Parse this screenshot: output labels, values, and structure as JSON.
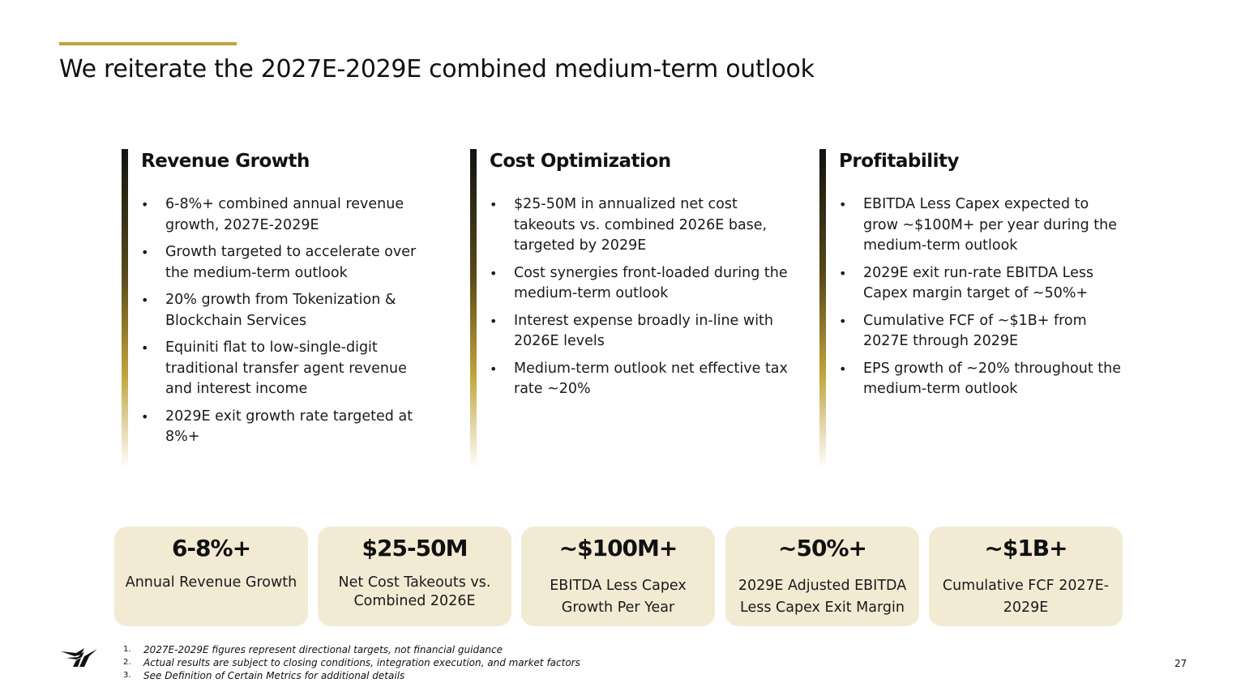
{
  "slide": {
    "title": "We reiterate the 2027E-2029E combined medium-term outlook",
    "page_number": "27"
  },
  "colors": {
    "accent": "#c0a23a",
    "card_background": "#f3ead4",
    "text": "#111111"
  },
  "columns": [
    {
      "title": "Revenue Growth",
      "bullets": [
        "6-8%+ combined annual revenue growth, 2027E-2029E",
        "Growth targeted to accelerate over the medium-term outlook",
        "20% growth from Tokenization & Blockchain Services",
        "Equiniti flat to low-single-digit traditional transfer agent revenue and interest income",
        "2029E exit growth rate targeted at 8%+"
      ]
    },
    {
      "title": "Cost Optimization",
      "bullets": [
        "$25-50M in annualized net cost takeouts vs. combined 2026E base, targeted by 2029E",
        "Cost synergies front-loaded during the medium-term outlook",
        "Interest expense broadly in-line with 2026E levels",
        "Medium-term outlook net effective tax rate ~20%"
      ]
    },
    {
      "title": "Profitability",
      "bullets": [
        "EBITDA Less Capex expected to grow ~$100M+ per year during the medium-term outlook",
        "2029E exit run-rate EBITDA Less Capex margin target of ~50%+",
        "Cumulative FCF of ~$1B+ from 2027E through 2029E",
        "EPS growth of ~20% throughout the medium-term outlook"
      ]
    }
  ],
  "kpis": [
    {
      "value": "6-8%+",
      "label": "Annual Revenue Growth"
    },
    {
      "value": "$25-50M",
      "label": "Net Cost Takeouts vs. Combined 2026E"
    },
    {
      "value": "~$100M+",
      "label": "EBITDA Less Capex Growth Per Year"
    },
    {
      "value": "~50%+",
      "label": "2029E Adjusted EBITDA Less Capex Exit Margin"
    },
    {
      "value": "~$1B+",
      "label": "Cumulative FCF 2027E-2029E"
    }
  ],
  "footnotes": [
    {
      "num": "1.",
      "text": "2027E-2029E figures represent directional targets, not financial guidance"
    },
    {
      "num": "2.",
      "text": "Actual results are subject to closing conditions, integration execution, and market factors"
    },
    {
      "num": "3.",
      "text": "See Definition of Certain Metrics for additional details"
    }
  ],
  "logo": {
    "icon": "company-logo-icon"
  }
}
